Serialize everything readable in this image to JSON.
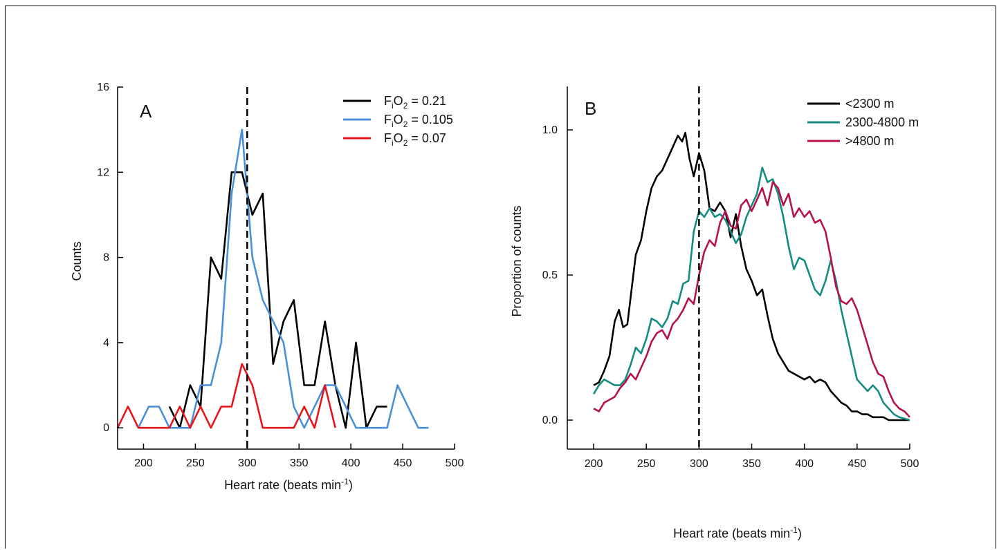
{
  "chart_data": [
    {
      "type": "line",
      "panel": "A",
      "xlabel": "Heart rate (beats min",
      "xlabel_sup": "-1",
      "xlabel_tail": ")",
      "ylabel": "Counts",
      "xlim": [
        175,
        500
      ],
      "ylim": [
        -1,
        16
      ],
      "xticks": [
        200,
        250,
        300,
        350,
        400,
        450,
        500
      ],
      "yticks": [
        0,
        4,
        8,
        12,
        16
      ],
      "xtick_labels": [
        "200",
        "250",
        "300",
        "350",
        "400",
        "450",
        "500"
      ],
      "ytick_labels": [
        "0",
        "4",
        "8",
        "12",
        "16"
      ],
      "reference_line": 300,
      "legend_position": "top-right",
      "series": [
        {
          "name": "FiO2 = 0.21",
          "name_parts": [
            "F",
            "i",
            "O",
            "2",
            " = 0.21"
          ],
          "color": "#000000",
          "points": [
            [
              225,
              1
            ],
            [
              230,
              0.5
            ],
            [
              235,
              0
            ],
            [
              240,
              1
            ],
            [
              245,
              2
            ],
            [
              250,
              1.5
            ],
            [
              255,
              1
            ],
            [
              265,
              8
            ],
            [
              275,
              7
            ],
            [
              285,
              12
            ],
            [
              295,
              12
            ],
            [
              305,
              10
            ],
            [
              315,
              11
            ],
            [
              325,
              3
            ],
            [
              335,
              5
            ],
            [
              345,
              6
            ],
            [
              355,
              2
            ],
            [
              365,
              2
            ],
            [
              375,
              5
            ],
            [
              385,
              2
            ],
            [
              395,
              0
            ],
            [
              405,
              4
            ],
            [
              415,
              0
            ],
            [
              425,
              1
            ],
            [
              435,
              1
            ]
          ]
        },
        {
          "name": "FiO2 = 0.105",
          "name_parts": [
            "F",
            "i",
            "O",
            "2",
            " = 0.105"
          ],
          "color": "#4a90d9",
          "points": [
            [
              195,
              0
            ],
            [
              205,
              1
            ],
            [
              215,
              1
            ],
            [
              225,
              0
            ],
            [
              245,
              0
            ],
            [
              255,
              2
            ],
            [
              265,
              2
            ],
            [
              275,
              4
            ],
            [
              285,
              11
            ],
            [
              295,
              14
            ],
            [
              305,
              8
            ],
            [
              315,
              6
            ],
            [
              325,
              5
            ],
            [
              335,
              4
            ],
            [
              345,
              1
            ],
            [
              355,
              0
            ],
            [
              365,
              1
            ],
            [
              375,
              2
            ],
            [
              385,
              2
            ],
            [
              395,
              1
            ],
            [
              405,
              0
            ],
            [
              425,
              0
            ],
            [
              435,
              0
            ],
            [
              445,
              2
            ],
            [
              455,
              1
            ],
            [
              465,
              0
            ],
            [
              475,
              0
            ]
          ]
        },
        {
          "name": "FiO2 = 0.07",
          "name_parts": [
            "F",
            "i",
            "O",
            "2",
            " = 0.07"
          ],
          "color": "#e8141b",
          "points": [
            [
              175,
              0
            ],
            [
              185,
              1
            ],
            [
              195,
              0
            ],
            [
              205,
              0
            ],
            [
              215,
              0
            ],
            [
              225,
              0
            ],
            [
              235,
              1
            ],
            [
              245,
              0
            ],
            [
              255,
              1
            ],
            [
              265,
              0
            ],
            [
              275,
              1
            ],
            [
              285,
              1
            ],
            [
              295,
              3
            ],
            [
              305,
              2
            ],
            [
              315,
              0
            ],
            [
              325,
              0
            ],
            [
              335,
              0
            ],
            [
              345,
              0
            ],
            [
              355,
              1
            ],
            [
              365,
              0
            ],
            [
              375,
              2
            ],
            [
              385,
              0
            ]
          ]
        }
      ]
    },
    {
      "type": "line",
      "panel": "B",
      "xlabel": "Heart rate (beats min",
      "xlabel_sup": "-1",
      "xlabel_tail": ")",
      "ylabel": "Proportion of counts",
      "xlim": [
        175,
        500
      ],
      "ylim": [
        -0.1,
        1.15
      ],
      "xticks": [
        200,
        250,
        300,
        350,
        400,
        450,
        500
      ],
      "yticks": [
        0.0,
        0.5,
        1.0
      ],
      "xtick_labels": [
        "200",
        "250",
        "300",
        "350",
        "400",
        "450",
        "500"
      ],
      "ytick_labels": [
        "0.0",
        "0.5",
        "1.0"
      ],
      "reference_line": 300,
      "legend_position": "top-right",
      "series": [
        {
          "name": "<2300 m",
          "color": "#000000",
          "points": [
            [
              200,
              0.12
            ],
            [
              205,
              0.13
            ],
            [
              210,
              0.17
            ],
            [
              215,
              0.22
            ],
            [
              220,
              0.34
            ],
            [
              224,
              0.38
            ],
            [
              228,
              0.32
            ],
            [
              232,
              0.33
            ],
            [
              236,
              0.45
            ],
            [
              240,
              0.57
            ],
            [
              245,
              0.62
            ],
            [
              250,
              0.72
            ],
            [
              255,
              0.8
            ],
            [
              260,
              0.84
            ],
            [
              265,
              0.86
            ],
            [
              270,
              0.9
            ],
            [
              275,
              0.94
            ],
            [
              280,
              0.98
            ],
            [
              284,
              0.96
            ],
            [
              287,
              0.99
            ],
            [
              291,
              0.9
            ],
            [
              295,
              0.84
            ],
            [
              300,
              0.92
            ],
            [
              305,
              0.86
            ],
            [
              310,
              0.73
            ],
            [
              315,
              0.72
            ],
            [
              320,
              0.75
            ],
            [
              325,
              0.72
            ],
            [
              330,
              0.63
            ],
            [
              335,
              0.71
            ],
            [
              340,
              0.6
            ],
            [
              345,
              0.52
            ],
            [
              350,
              0.48
            ],
            [
              355,
              0.43
            ],
            [
              360,
              0.45
            ],
            [
              365,
              0.36
            ],
            [
              370,
              0.28
            ],
            [
              375,
              0.23
            ],
            [
              380,
              0.2
            ],
            [
              385,
              0.17
            ],
            [
              390,
              0.16
            ],
            [
              395,
              0.15
            ],
            [
              400,
              0.14
            ],
            [
              405,
              0.15
            ],
            [
              410,
              0.13
            ],
            [
              415,
              0.14
            ],
            [
              420,
              0.13
            ],
            [
              425,
              0.1
            ],
            [
              430,
              0.08
            ],
            [
              435,
              0.06
            ],
            [
              440,
              0.05
            ],
            [
              445,
              0.03
            ],
            [
              450,
              0.03
            ],
            [
              455,
              0.02
            ],
            [
              460,
              0.02
            ],
            [
              465,
              0.01
            ],
            [
              470,
              0.01
            ],
            [
              475,
              0.01
            ],
            [
              480,
              0.0
            ],
            [
              490,
              0.0
            ],
            [
              500,
              0.0
            ]
          ]
        },
        {
          "name": "2300-4800 m",
          "color": "#138c81",
          "points": [
            [
              200,
              0.09
            ],
            [
              205,
              0.12
            ],
            [
              210,
              0.14
            ],
            [
              215,
              0.13
            ],
            [
              220,
              0.12
            ],
            [
              225,
              0.12
            ],
            [
              230,
              0.14
            ],
            [
              235,
              0.19
            ],
            [
              240,
              0.25
            ],
            [
              245,
              0.23
            ],
            [
              250,
              0.28
            ],
            [
              255,
              0.35
            ],
            [
              260,
              0.34
            ],
            [
              265,
              0.32
            ],
            [
              270,
              0.35
            ],
            [
              275,
              0.41
            ],
            [
              280,
              0.4
            ],
            [
              285,
              0.47
            ],
            [
              290,
              0.48
            ],
            [
              295,
              0.65
            ],
            [
              300,
              0.72
            ],
            [
              305,
              0.7
            ],
            [
              310,
              0.73
            ],
            [
              315,
              0.7
            ],
            [
              320,
              0.71
            ],
            [
              325,
              0.69
            ],
            [
              330,
              0.65
            ],
            [
              335,
              0.61
            ],
            [
              340,
              0.64
            ],
            [
              345,
              0.7
            ],
            [
              350,
              0.74
            ],
            [
              355,
              0.78
            ],
            [
              360,
              0.87
            ],
            [
              365,
              0.82
            ],
            [
              370,
              0.83
            ],
            [
              375,
              0.78
            ],
            [
              380,
              0.7
            ],
            [
              385,
              0.6
            ],
            [
              390,
              0.52
            ],
            [
              395,
              0.56
            ],
            [
              400,
              0.55
            ],
            [
              405,
              0.5
            ],
            [
              410,
              0.45
            ],
            [
              415,
              0.43
            ],
            [
              420,
              0.48
            ],
            [
              425,
              0.55
            ],
            [
              430,
              0.48
            ],
            [
              435,
              0.38
            ],
            [
              440,
              0.3
            ],
            [
              445,
              0.22
            ],
            [
              450,
              0.14
            ],
            [
              455,
              0.12
            ],
            [
              460,
              0.1
            ],
            [
              465,
              0.12
            ],
            [
              470,
              0.1
            ],
            [
              475,
              0.06
            ],
            [
              480,
              0.04
            ],
            [
              485,
              0.02
            ],
            [
              490,
              0.01
            ],
            [
              500,
              0.0
            ]
          ]
        },
        {
          "name": ">4800 m",
          "color": "#b5124d",
          "points": [
            [
              200,
              0.04
            ],
            [
              205,
              0.03
            ],
            [
              210,
              0.06
            ],
            [
              215,
              0.07
            ],
            [
              220,
              0.08
            ],
            [
              225,
              0.11
            ],
            [
              230,
              0.13
            ],
            [
              235,
              0.16
            ],
            [
              240,
              0.14
            ],
            [
              245,
              0.18
            ],
            [
              250,
              0.22
            ],
            [
              255,
              0.27
            ],
            [
              260,
              0.3
            ],
            [
              265,
              0.31
            ],
            [
              270,
              0.28
            ],
            [
              275,
              0.33
            ],
            [
              280,
              0.35
            ],
            [
              285,
              0.38
            ],
            [
              290,
              0.42
            ],
            [
              295,
              0.4
            ],
            [
              300,
              0.5
            ],
            [
              305,
              0.58
            ],
            [
              310,
              0.62
            ],
            [
              315,
              0.6
            ],
            [
              320,
              0.68
            ],
            [
              325,
              0.72
            ],
            [
              330,
              0.67
            ],
            [
              335,
              0.66
            ],
            [
              340,
              0.74
            ],
            [
              345,
              0.76
            ],
            [
              350,
              0.72
            ],
            [
              355,
              0.76
            ],
            [
              360,
              0.8
            ],
            [
              365,
              0.74
            ],
            [
              370,
              0.82
            ],
            [
              375,
              0.8
            ],
            [
              380,
              0.74
            ],
            [
              385,
              0.78
            ],
            [
              390,
              0.7
            ],
            [
              395,
              0.73
            ],
            [
              400,
              0.7
            ],
            [
              405,
              0.72
            ],
            [
              410,
              0.68
            ],
            [
              415,
              0.69
            ],
            [
              420,
              0.65
            ],
            [
              425,
              0.56
            ],
            [
              430,
              0.46
            ],
            [
              435,
              0.41
            ],
            [
              440,
              0.4
            ],
            [
              445,
              0.42
            ],
            [
              450,
              0.38
            ],
            [
              455,
              0.32
            ],
            [
              460,
              0.26
            ],
            [
              465,
              0.2
            ],
            [
              470,
              0.16
            ],
            [
              475,
              0.15
            ],
            [
              480,
              0.1
            ],
            [
              485,
              0.06
            ],
            [
              490,
              0.04
            ],
            [
              495,
              0.03
            ],
            [
              500,
              0.01
            ]
          ]
        }
      ]
    }
  ]
}
